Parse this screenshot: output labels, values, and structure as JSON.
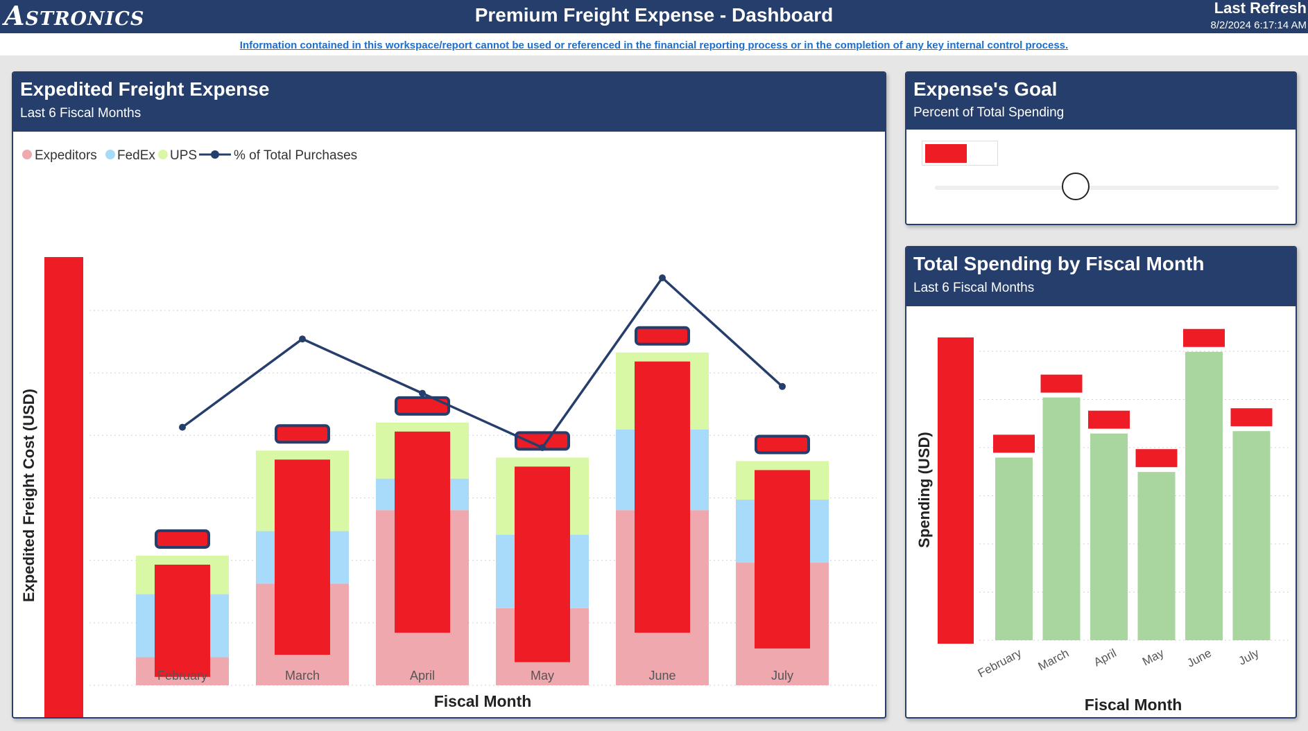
{
  "header": {
    "logo_text": "Astronics",
    "title": "Premium Freight Expense - Dashboard",
    "last_refresh_label": "Last Refresh",
    "last_refresh_time": "8/2/2024 6:17:14 AM",
    "disclaimer": "Information contained in this workspace/report cannot be used or referenced in the financial reporting process or in the completion of any key internal control process."
  },
  "colors": {
    "navy": "#253e6b",
    "expeditors": "#eea8ae",
    "fedex": "#a8dbfa",
    "ups": "#d8f8a6",
    "redacted": "#ee1c25",
    "spending": "#a8d69e"
  },
  "cards": {
    "freight": {
      "title": "Expedited Freight Expense",
      "subtitle": "Last 6 Fiscal Months"
    },
    "goal": {
      "title": "Expense's Goal",
      "subtitle": "Percent of Total Spending"
    },
    "spending": {
      "title": "Total Spending by Fiscal Month",
      "subtitle": "Last 6 Fiscal Months"
    }
  },
  "goal_slider": {
    "level_percent": 41
  },
  "chart_data": [
    {
      "type": "bar",
      "stacked": true,
      "combo_line": true,
      "title": "Expedited Freight Expense",
      "xlabel": "Fiscal Month",
      "ylabel": "Expedited Freight Cost (USD)",
      "categories": [
        "February",
        "March",
        "April",
        "May",
        "June",
        "July"
      ],
      "legend_position": "top-left",
      "legend": [
        "Expeditors",
        "FedEx",
        "UPS",
        "% of Total Purchases"
      ],
      "grid": true,
      "ylim": [
        0,
        63
      ],
      "series": [
        {
          "name": "Expeditors",
          "values": [
            4,
            14.5,
            25,
            11,
            25,
            17.5
          ]
        },
        {
          "name": "FedEx",
          "values": [
            9,
            7.5,
            4.5,
            10.5,
            11.5,
            9
          ]
        },
        {
          "name": "UPS",
          "values": [
            5.5,
            11.5,
            8,
            11,
            11,
            5.5
          ]
        }
      ],
      "line": {
        "name": "% of Total Purchases",
        "values": [
          38,
          51,
          43,
          35,
          60,
          44
        ],
        "ylim": [
          0,
          65
        ]
      }
    },
    {
      "type": "bar",
      "title": "Total Spending by Fiscal Month",
      "xlabel": "Fiscal Month",
      "ylabel": "Spending (USD)",
      "categories": [
        "February",
        "March",
        "April",
        "May",
        "June",
        "July"
      ],
      "grid": true,
      "ylim": [
        0,
        6.4
      ],
      "values": [
        3.8,
        5.05,
        4.3,
        3.5,
        6.0,
        4.35
      ]
    }
  ]
}
